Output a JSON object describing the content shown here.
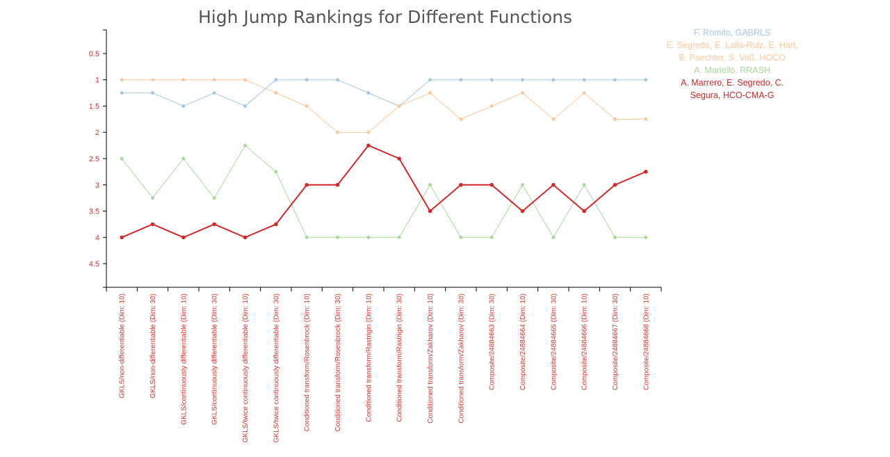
{
  "chart_data": {
    "type": "line",
    "title": "High Jump Rankings for Different Functions",
    "xlabel": "",
    "ylabel": "",
    "ylim": [
      0.05,
      4.95
    ],
    "y_inverted": true,
    "yticks": [
      "0.5",
      "1",
      "1.5",
      "2",
      "2.5",
      "3",
      "3.5",
      "4",
      "4.5"
    ],
    "grid": false,
    "legend_position": "top-right",
    "categories": [
      "GKLS/non-differentiable (Dim: 10)",
      "GKLS/non-differentiable (Dim: 30)",
      "GKLS/continuously differentiable (Dim: 10)",
      "GKLS/continuously differentiable (Dim: 30)",
      "GKLS/twice continuously differentiable (Dim: 10)",
      "GKLS/twice continuously differentiable (Dim: 30)",
      "Conditioned transform/Rosenbrock (Dim: 10)",
      "Conditioned transform/Rosenbrock (Dim: 30)",
      "Conditioned transform/Rastrigin (Dim: 10)",
      "Conditioned transform/Rastrigin (Dim: 30)",
      "Conditioned transform/Zakharov (Dim: 10)",
      "Conditioned transform/Zakharov (Dim: 30)",
      "Composite/24884663 (Dim: 30)",
      "Composite/24884664 (Dim: 10)",
      "Composite/24884665 (Dim: 30)",
      "Composite/24884666 (Dim: 10)",
      "Composite/24884667 (Dim: 30)",
      "Composite/24884668 (Dim: 10)"
    ],
    "series": [
      {
        "name": "F. Romito, GABRLS",
        "legend_lines": [
          "F. Romito, GABRLS"
        ],
        "color": "#a6c8e0",
        "values": [
          1.25,
          1.25,
          1.5,
          1.25,
          1.5,
          1,
          1,
          1,
          1.25,
          1.5,
          1,
          1,
          1,
          1,
          1,
          1,
          1,
          1
        ]
      },
      {
        "name": "E. Segredo, E. Lalla-Ruiz, E. Hart, B. Paechter, S. Voß, HOCO",
        "legend_lines": [
          "E. Segredo, E. Lalla-Ruiz, E. Hart,",
          "B. Paechter, S. Voß, HOCO"
        ],
        "color": "#fcc99c",
        "values": [
          1,
          1,
          1,
          1,
          1,
          1.25,
          1.5,
          2,
          2,
          1.5,
          1.25,
          1.75,
          1.5,
          1.25,
          1.75,
          1.25,
          1.75,
          1.75
        ]
      },
      {
        "name": "A. Mariello, RRASH",
        "legend_lines": [
          "A. Mariello, RRASH"
        ],
        "color": "#a9d99b",
        "values": [
          2.5,
          3.25,
          2.5,
          3.25,
          2.25,
          2.75,
          4,
          4,
          4,
          4,
          3,
          4,
          4,
          3,
          4,
          3,
          4,
          4
        ]
      },
      {
        "name": "A. Marrero, E. Segredo, C. Segura, HCO-CMA-G",
        "legend_lines": [
          "A. Marrero, E. Segredo, C.",
          "Segura, HCO-CMA-G"
        ],
        "color": "#d62728",
        "values": [
          4,
          3.75,
          4,
          3.75,
          4,
          3.75,
          3,
          3,
          2.25,
          2.5,
          3.5,
          3,
          3,
          3.5,
          3,
          3.5,
          3,
          2.75
        ]
      }
    ]
  }
}
